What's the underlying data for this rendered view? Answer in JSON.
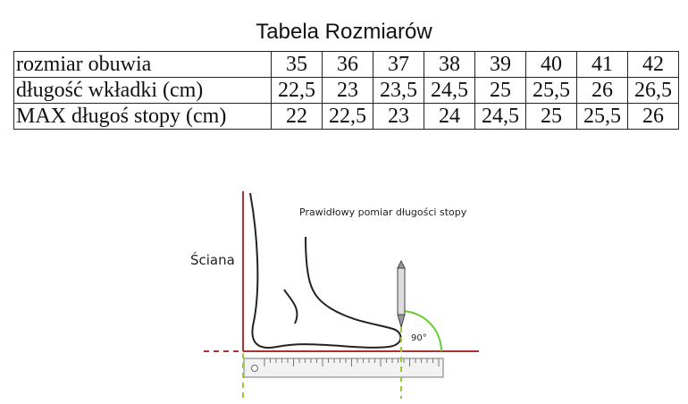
{
  "header": {
    "title": "Tabela Rozmiarów"
  },
  "table": {
    "rows": [
      [
        "rozmiar obuwia",
        "35",
        "36",
        "37",
        "38",
        "39",
        "40",
        "41",
        "42"
      ],
      [
        "długość wkładki (cm)",
        "22,5",
        "23",
        "23,5",
        "24,5",
        "25",
        "25,5",
        "26",
        "26,5"
      ],
      [
        "MAX długoś stopy (cm)",
        "22",
        "22,5",
        "23",
        "24",
        "24,5",
        "25",
        "25,5",
        "26"
      ]
    ]
  },
  "diagram": {
    "caption": "Prawidłowy pomiar długości stopy",
    "wall_label": "Ściana",
    "angle_label": "90°"
  }
}
